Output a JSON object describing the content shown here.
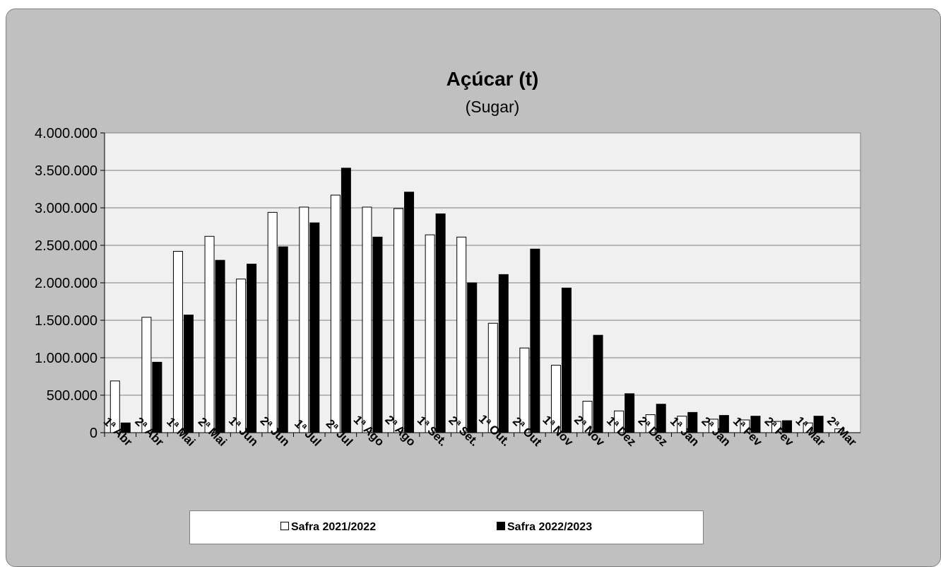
{
  "chart_data": {
    "type": "bar",
    "title": "Açúcar (t)",
    "subtitle": "(Sugar)",
    "categories": [
      "1ª Abr",
      "2ª Abr",
      "1ª Mai",
      "2ª Mai",
      "1ª Jun",
      "2ª Jun",
      "1ª Jul",
      "2ª Jul",
      "1ª Ago",
      "2ª Ago",
      "1ª Set.",
      "2ª Set.",
      "1ª Out.",
      "2ª Out",
      "1ª Nov",
      "2ª Nov",
      "1ª Dez",
      "2ª Dez",
      "1ª Jan",
      "2ª Jan",
      "1ª Fev",
      "2ª Fev",
      "1ª Mar",
      "2ª Mar"
    ],
    "series": [
      {
        "name": "Safra 2021/2022",
        "color": "#ffffff",
        "values": [
          690000,
          1540000,
          2420000,
          2620000,
          2050000,
          2940000,
          3010000,
          3170000,
          3010000,
          2990000,
          2640000,
          2610000,
          1460000,
          1130000,
          900000,
          420000,
          290000,
          240000,
          220000,
          180000,
          170000,
          150000,
          130000,
          50000
        ]
      },
      {
        "name": "Safra 2022/2023",
        "color": "#000000",
        "values": [
          130000,
          940000,
          1570000,
          2300000,
          2250000,
          2480000,
          2800000,
          3530000,
          2610000,
          3210000,
          2920000,
          2000000,
          2110000,
          2450000,
          1930000,
          1300000,
          520000,
          380000,
          270000,
          230000,
          220000,
          160000,
          220000,
          null
        ]
      }
    ],
    "yticks": [
      "0",
      "500.000",
      "1.000.000",
      "1.500.000",
      "2.000.000",
      "2.500.000",
      "3.000.000",
      "3.500.000",
      "4.000.000"
    ],
    "ylim": [
      0,
      4000000
    ],
    "grid": true,
    "legend_position": "bottom"
  }
}
